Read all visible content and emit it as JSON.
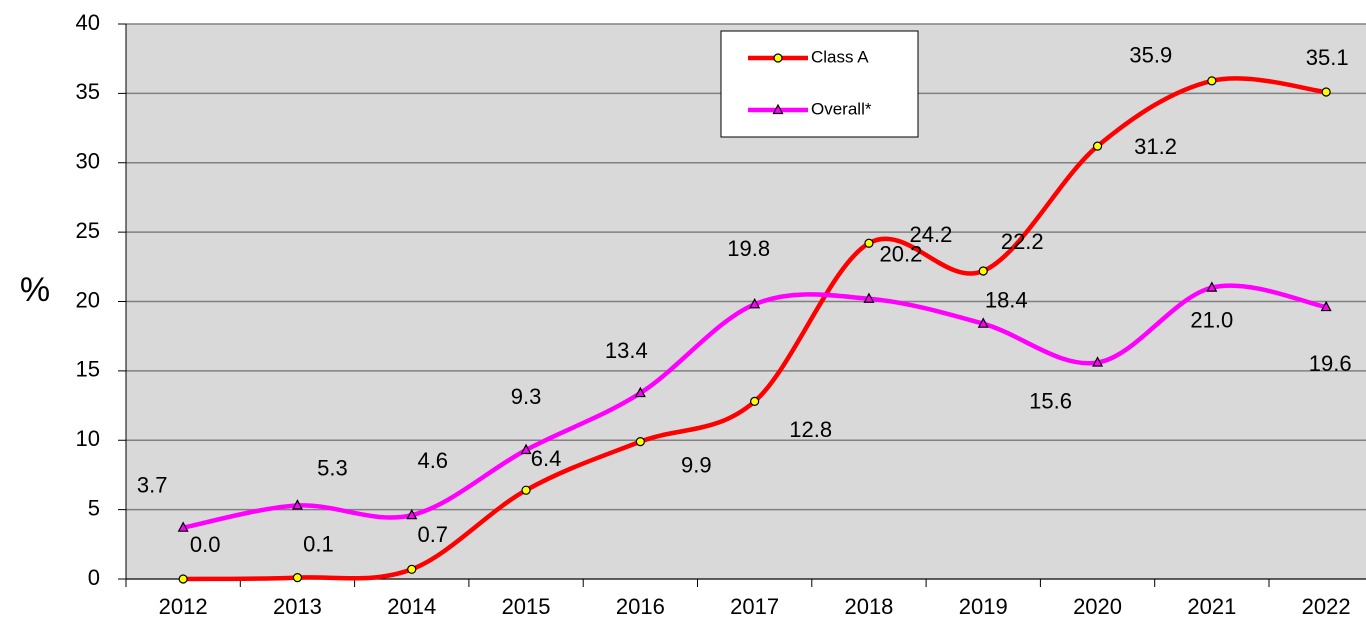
{
  "chart_data": {
    "type": "line",
    "y_label": "%",
    "categories": [
      "2012",
      "2013",
      "2014",
      "2015",
      "2016",
      "2017",
      "2018",
      "2019",
      "2020",
      "2021",
      "2022"
    ],
    "series": [
      {
        "name": "Class A",
        "color": "#ff0000",
        "marker_color": "#ffff00",
        "values": [
          0.0,
          0.1,
          0.7,
          6.4,
          9.9,
          12.8,
          24.2,
          22.2,
          31.2,
          35.9,
          35.1
        ],
        "value_labels": [
          "0.0",
          "0.1",
          "0.7",
          "6.4",
          "9.9",
          "12.8",
          "24.2",
          "22.2",
          "31.2",
          "35.9",
          "35.1"
        ]
      },
      {
        "name": "Overall*",
        "color": "#ff00ff",
        "marker_color": "#ff00ff",
        "values": [
          3.7,
          5.3,
          4.6,
          9.3,
          13.4,
          19.8,
          20.2,
          18.4,
          15.6,
          21.0,
          19.6
        ],
        "value_labels": [
          "3.7",
          "5.3",
          "4.6",
          "9.3",
          "13.4",
          "19.8",
          "20.2",
          "18.4",
          "15.6",
          "21.0",
          "19.6"
        ]
      }
    ],
    "ylim": [
      0,
      40
    ],
    "yticks": [
      0,
      5,
      10,
      15,
      20,
      25,
      30,
      35,
      40
    ],
    "grid": true,
    "legend": "top-center"
  }
}
